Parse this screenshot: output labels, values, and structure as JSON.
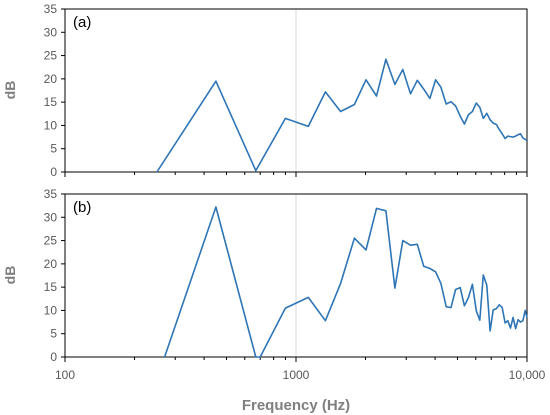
{
  "figure": {
    "xlabel": "Frequency (Hz)"
  },
  "chart_data": [
    {
      "type": "line",
      "panel_label": "(a)",
      "ylabel": "dB",
      "xscale": "log",
      "xlim": [
        100,
        10000
      ],
      "ylim": [
        0,
        35
      ],
      "yticks": [
        0,
        5,
        10,
        15,
        20,
        25,
        30,
        35
      ],
      "xticks": [
        100,
        1000,
        10000
      ],
      "xtick_labels": [
        "",
        "",
        ""
      ],
      "grid": "vertical gridline at 1000",
      "line_color": "#2e75b6",
      "x": [
        250,
        450,
        670,
        900,
        1130,
        1340,
        1560,
        1790,
        2010,
        2230,
        2450,
        2680,
        2900,
        3130,
        3350,
        3570,
        3800,
        4020,
        4240,
        4470,
        4690,
        4910,
        5140,
        5360,
        5580,
        5800,
        6030,
        6250,
        6470,
        6700,
        6920,
        7140,
        7370,
        7590,
        7810,
        8040,
        8260,
        8480,
        8710,
        8930,
        9150,
        9370,
        9600,
        9820,
        10000
      ],
      "y": [
        0,
        19.5,
        0.3,
        11.5,
        9.8,
        17.2,
        13,
        14.5,
        19.8,
        16.3,
        24.2,
        18.8,
        22,
        16.8,
        19.7,
        17.8,
        15.8,
        19.8,
        18.2,
        14.6,
        15.1,
        14.2,
        12,
        10.3,
        12.3,
        13,
        14.8,
        13.9,
        11.5,
        12.6,
        11.2,
        10.5,
        10.2,
        9.1,
        8.2,
        7.2,
        7.7,
        7.6,
        7.5,
        7.7,
        8.0,
        8.2,
        7.3,
        7.0,
        6.8
      ]
    },
    {
      "type": "line",
      "panel_label": "(b)",
      "ylabel": "dB",
      "xscale": "log",
      "xlim": [
        100,
        10000
      ],
      "ylim": [
        0,
        35
      ],
      "yticks": [
        0,
        5,
        10,
        15,
        20,
        25,
        30,
        35
      ],
      "xticks": [
        100,
        1000,
        10000
      ],
      "xtick_labels": [
        "100",
        "1000",
        "10,000"
      ],
      "grid": "vertical gridline at 1000",
      "line_color": "#2e75b6",
      "x": [
        270,
        450,
        670,
        700,
        900,
        1130,
        1340,
        1560,
        1790,
        2010,
        2230,
        2450,
        2680,
        2900,
        3130,
        3350,
        3570,
        3800,
        4020,
        4240,
        4470,
        4690,
        4910,
        5140,
        5360,
        5580,
        5800,
        6030,
        6250,
        6470,
        6700,
        6920,
        7140,
        7370,
        7590,
        7810,
        8040,
        8260,
        8480,
        8710,
        8930,
        9150,
        9370,
        9600,
        9820,
        10000
      ],
      "y": [
        0,
        32.2,
        0,
        0,
        10.5,
        12.8,
        7.8,
        15.8,
        25.5,
        23.0,
        31.9,
        31.4,
        14.8,
        25.0,
        24.0,
        24.2,
        19.5,
        19.0,
        18.3,
        15.8,
        10.8,
        10.6,
        14.5,
        14.9,
        11.0,
        12.8,
        15.6,
        9.9,
        7.9,
        17.6,
        15.4,
        5.6,
        10.1,
        10.4,
        11.2,
        10.6,
        7.3,
        7.8,
        6.2,
        8.5,
        6.1,
        8.0,
        7.5,
        7.8,
        10.0,
        8.5
      ]
    }
  ]
}
